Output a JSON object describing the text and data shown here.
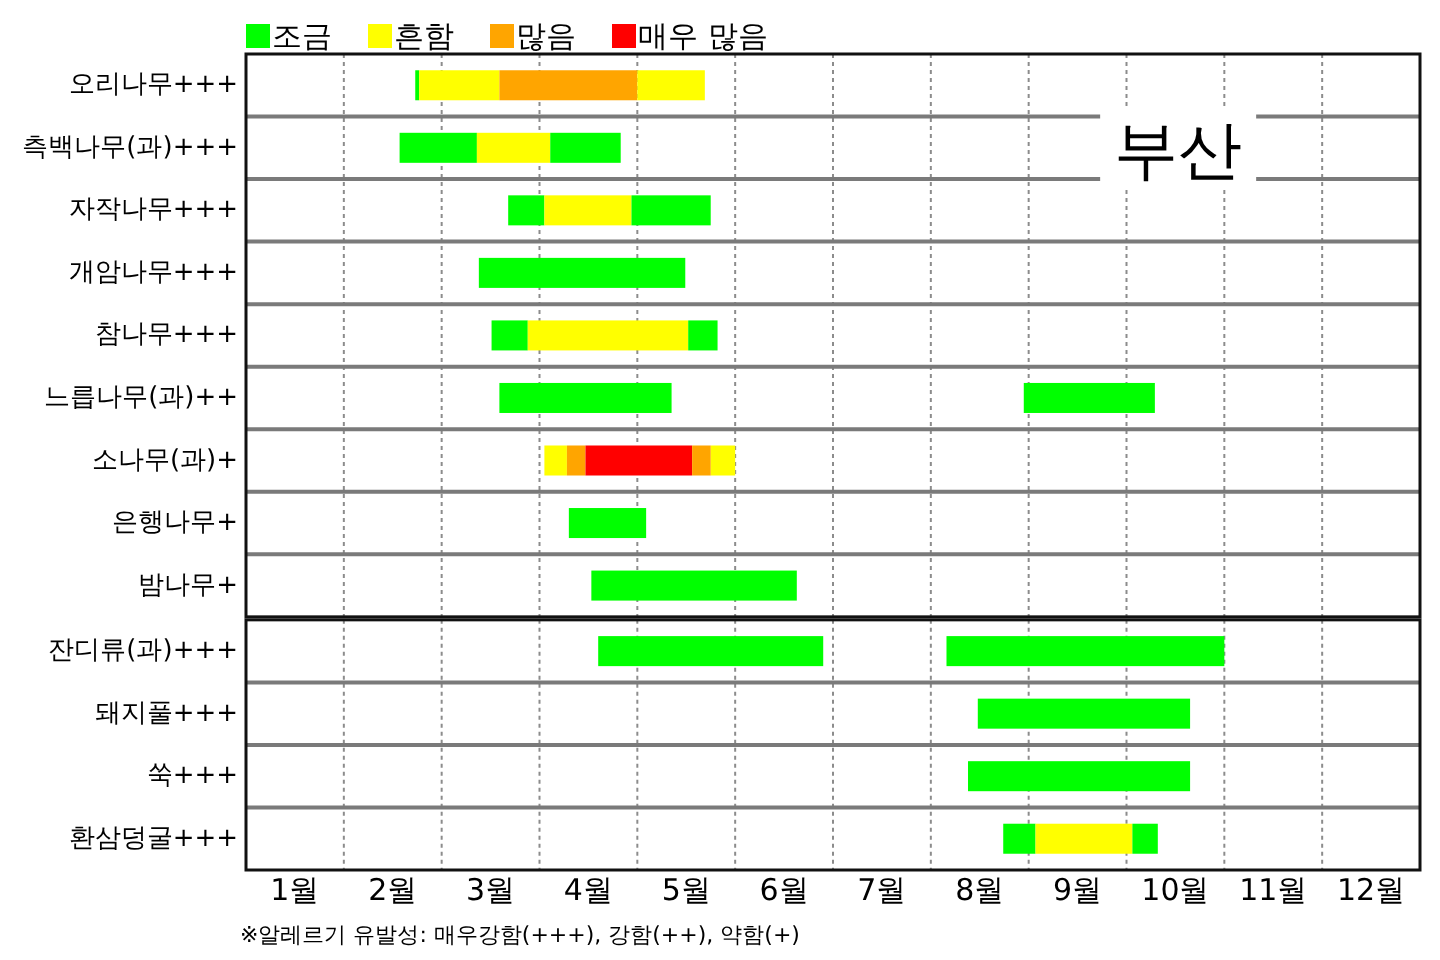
{
  "chart_data": [
    {
      "type": "bar",
      "orientation": "horizontal",
      "title": "부산",
      "categories": [
        "오리나무+++",
        "측백나무(과)+++",
        "자작나무+++",
        "개암나무+++",
        "참나무+++",
        "느릅나무(과)++",
        "소나무(과)+",
        "은행나무+",
        "밤나무+"
      ],
      "series": [
        {
          "name": "조금",
          "color": "#00ff00",
          "base": [
            2.23,
            2.07,
            3.18,
            2.88,
            3.01,
            3.09,
            null,
            3.8,
            4.03
          ],
          "values": [
            0.04,
            0.79,
            0.37,
            2.11,
            0.37,
            1.76,
            null,
            0.79,
            2.1
          ]
        },
        {
          "name": "흔함",
          "color": "#ffff00",
          "base": [
            2.27,
            2.86,
            3.55,
            null,
            3.38,
            null,
            3.55,
            null,
            null
          ],
          "values": [
            0.82,
            0.75,
            0.89,
            null,
            1.64,
            null,
            0.23,
            null,
            null
          ]
        },
        {
          "name": "많음",
          "color": "#ffa500",
          "base": [
            3.09,
            null,
            null,
            null,
            null,
            null,
            3.78,
            null,
            null
          ],
          "values": [
            1.41,
            null,
            null,
            null,
            null,
            null,
            0.19,
            null,
            null
          ]
        },
        {
          "name": "매우 많음",
          "color": "#ff0000",
          "base": [
            null,
            null,
            null,
            null,
            null,
            null,
            3.97,
            null,
            null
          ],
          "values": [
            null,
            null,
            null,
            null,
            null,
            null,
            1.09,
            null,
            null
          ]
        },
        {
          "color": "#00ff00",
          "base": [
            null,
            3.61,
            4.44,
            null,
            5.02,
            8.45,
            null,
            null,
            null
          ],
          "values": [
            null,
            0.72,
            0.81,
            null,
            0.3,
            1.34,
            null,
            null,
            null
          ]
        },
        {
          "color": "#ffff00",
          "base": [
            4.5,
            null,
            null,
            null,
            null,
            null,
            5.25,
            null,
            null
          ],
          "values": [
            0.69,
            null,
            null,
            null,
            null,
            null,
            0.25,
            null,
            null
          ]
        },
        {
          "color": "#ffa500",
          "base": [
            null,
            null,
            null,
            null,
            null,
            null,
            5.06,
            null,
            null
          ],
          "values": [
            null,
            null,
            null,
            null,
            null,
            null,
            0.19,
            null,
            null
          ]
        }
      ],
      "xlim": [
        0.5,
        12.5
      ],
      "xticks": [
        {
          "value": 1.5,
          "label": null
        },
        {
          "value": 2.5,
          "label": null
        },
        {
          "value": 3.5,
          "label": null
        },
        {
          "value": 4.5,
          "label": null
        },
        {
          "value": 5.5,
          "label": null
        },
        {
          "value": 6.5,
          "label": null
        },
        {
          "value": 7.5,
          "label": null
        },
        {
          "value": 8.5,
          "label": null
        },
        {
          "value": 9.5,
          "label": null
        },
        {
          "value": 10.5,
          "label": null
        },
        {
          "value": 11.5,
          "label": null
        }
      ],
      "tick_labels": "y",
      "grid": true,
      "legend": "top left"
    },
    {
      "type": "bar",
      "orientation": "horizontal",
      "categories": [
        "잔디류(과)+++",
        "돼지풀+++",
        "쑥+++",
        "환삼덩굴+++"
      ],
      "series": [
        {
          "color": "#00ff00",
          "base": [
            4.1,
            7.98,
            7.88,
            8.24
          ],
          "values": [
            2.3,
            2.17,
            2.27,
            0.33
          ]
        },
        {
          "color": "#ffff00",
          "base": [
            null,
            null,
            null,
            8.57
          ],
          "values": [
            null,
            null,
            null,
            0.99
          ]
        },
        {
          "color": "#00ff00",
          "base": [
            7.66,
            null,
            null,
            9.56
          ],
          "values": [
            2.84,
            null,
            null,
            0.26
          ]
        }
      ],
      "xlim": [
        0.5,
        12.5
      ],
      "xticks": [
        {
          "value": 1,
          "label": "1월"
        },
        {
          "value": 1.5,
          "label": null
        },
        {
          "value": 2,
          "label": "2월"
        },
        {
          "value": 2.5,
          "label": null
        },
        {
          "value": 3,
          "label": "3월"
        },
        {
          "value": 3.5,
          "label": null
        },
        {
          "value": 4,
          "label": "4월"
        },
        {
          "value": 4.5,
          "label": null
        },
        {
          "value": 5,
          "label": "5월"
        },
        {
          "value": 5.5,
          "label": null
        },
        {
          "value": 6,
          "label": "6월"
        },
        {
          "value": 6.5,
          "label": null
        },
        {
          "value": 7,
          "label": "7월"
        },
        {
          "value": 7.5,
          "label": null
        },
        {
          "value": 8,
          "label": "8월"
        },
        {
          "value": 8.5,
          "label": null
        },
        {
          "value": 9,
          "label": "9월"
        },
        {
          "value": 9.5,
          "label": null
        },
        {
          "value": 10,
          "label": "10월"
        },
        {
          "value": 10.5,
          "label": null
        },
        {
          "value": 11,
          "label": "11월"
        },
        {
          "value": 11.5,
          "label": null
        },
        {
          "value": 12,
          "label": "12월"
        }
      ],
      "grid": true,
      "annotations": [
        "※알레르기 유발성: 매우강함(+++), 강함(++), 약함(+)"
      ]
    }
  ]
}
